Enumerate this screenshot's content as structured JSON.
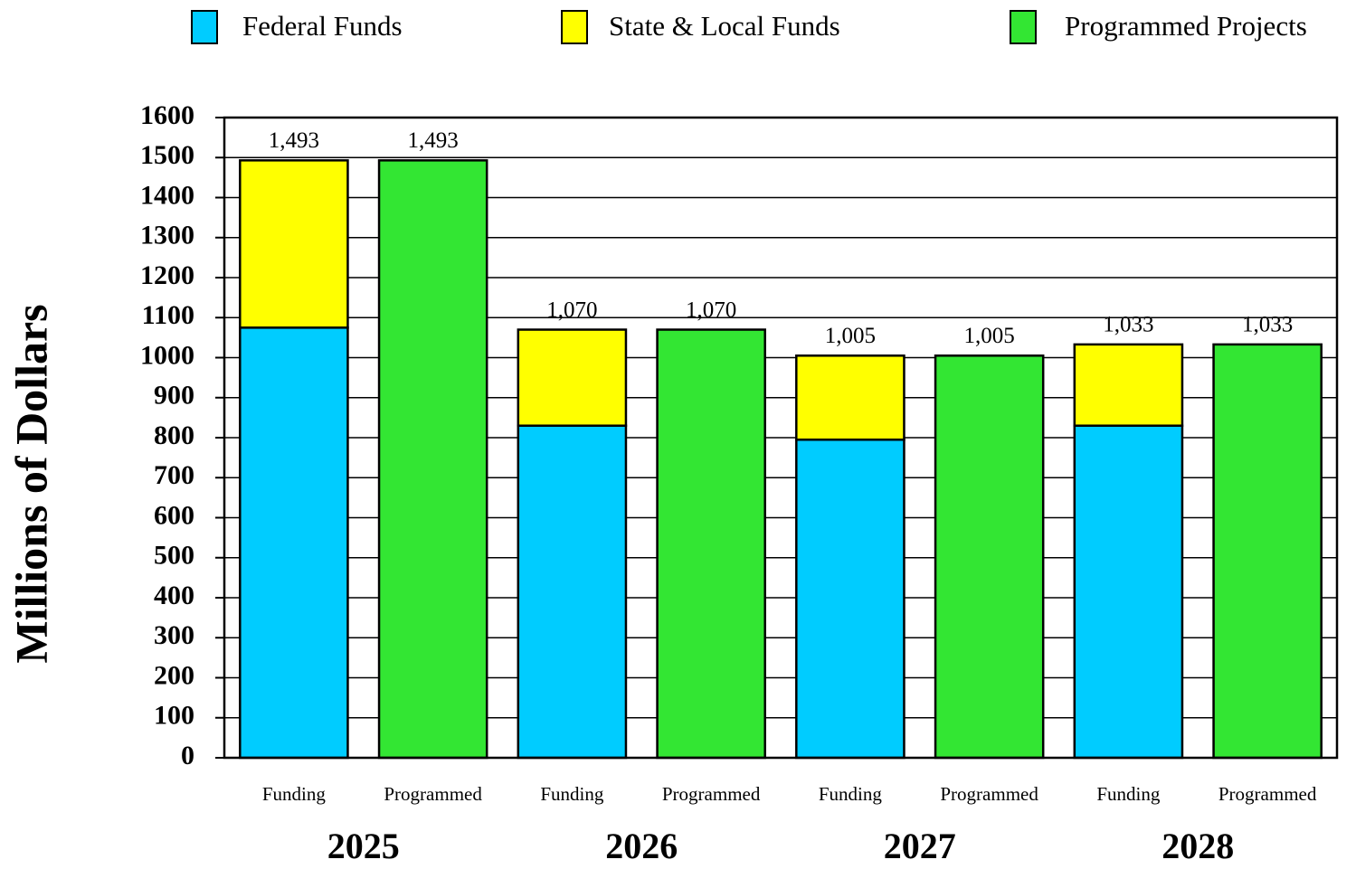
{
  "chart_data": {
    "type": "stacked_bar",
    "y_label": "Millions of Dollars",
    "categories": [
      "Funding",
      "Programmed",
      "Funding",
      "Programmed",
      "Funding",
      "Programmed",
      "Funding",
      "Programmed"
    ],
    "groups": [
      "2025",
      "2026",
      "2027",
      "2028"
    ],
    "series": [
      {
        "name": "Federal Funds",
        "color": "#00ccff",
        "values": [
          1075,
          null,
          830,
          null,
          795,
          null,
          830,
          null
        ]
      },
      {
        "name": "State & Local Funds",
        "color": "#ffff00",
        "values": [
          418,
          null,
          240,
          null,
          210,
          null,
          203,
          null
        ]
      },
      {
        "name": "Programmed Projects",
        "color": "#33e633",
        "values": [
          null,
          1493,
          null,
          1070,
          null,
          1005,
          null,
          1033
        ]
      }
    ],
    "totals": [
      1493,
      1493,
      1070,
      1070,
      1005,
      1005,
      1033,
      1033
    ],
    "total_labels": [
      "1,493",
      "1,493",
      "1,070",
      "1,070",
      "1,005",
      "1,005",
      "1,033",
      "1,033"
    ],
    "ylim": [
      0,
      1600
    ],
    "yticks": [
      0,
      100,
      200,
      300,
      400,
      500,
      600,
      700,
      800,
      900,
      1000,
      1100,
      1200,
      1300,
      1400,
      1500,
      1600
    ],
    "grid": true
  }
}
